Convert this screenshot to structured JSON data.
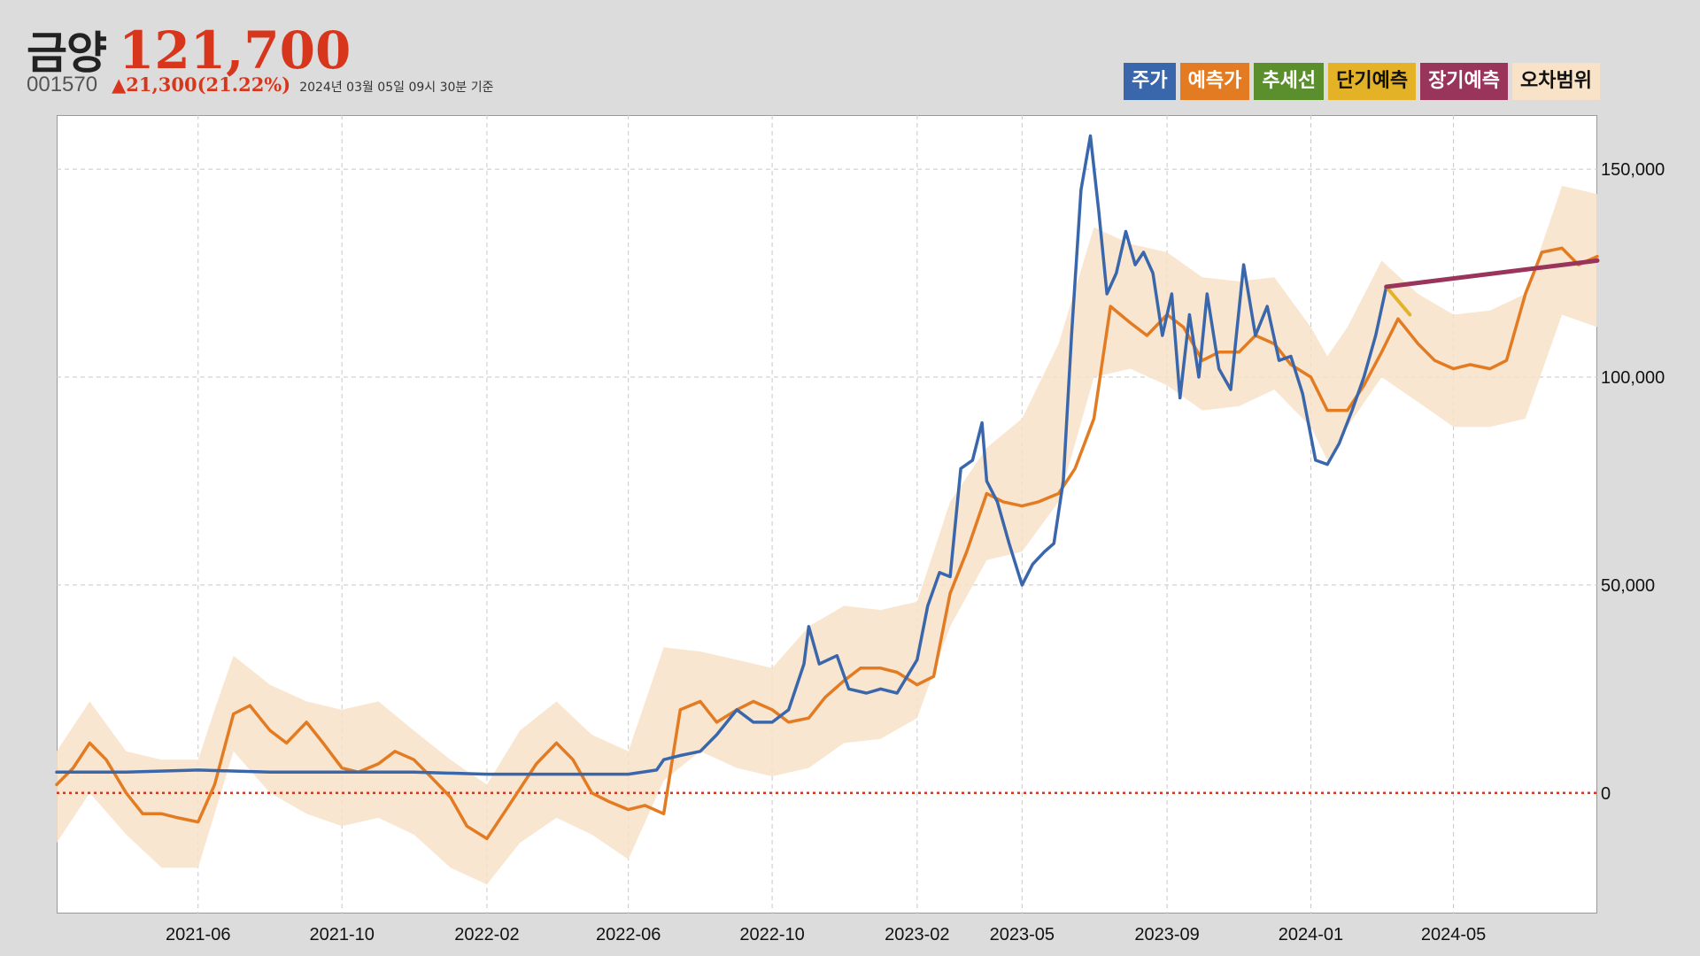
{
  "header": {
    "name": "금양",
    "price": "121,700",
    "code": "001570",
    "change": "▲21,300(21.22%)",
    "date": "2024년 03월 05일 09시 30분 기준"
  },
  "legend": [
    {
      "label": "주가",
      "color": "#3a67ab",
      "text_color": "#ffffff"
    },
    {
      "label": "예측가",
      "color": "#e37b22",
      "text_color": "#ffffff"
    },
    {
      "label": "추세선",
      "color": "#5b8f2d",
      "text_color": "#ffffff"
    },
    {
      "label": "단기예측",
      "color": "#e3b226",
      "text_color": "#111111"
    },
    {
      "label": "장기예측",
      "color": "#99345a",
      "text_color": "#ffffff"
    },
    {
      "label": "오차범위",
      "color": "#f8e2c8",
      "text_color": "#111111"
    }
  ],
  "chart_data": {
    "type": "line",
    "x_type": "date",
    "xlim": [
      "2021-02-01",
      "2024-08-31"
    ],
    "ylim": [
      -29000,
      163000
    ],
    "x_ticks": [
      "2021-06",
      "2021-10",
      "2022-02",
      "2022-06",
      "2022-10",
      "2023-02",
      "2023-05",
      "2023-09",
      "2024-01",
      "2024-05"
    ],
    "y_ticks": [
      0,
      50000,
      100000,
      150000
    ],
    "y_tick_labels": [
      "0",
      "50,000",
      "100,000",
      "150,000"
    ],
    "grid": true,
    "zero_line": {
      "value": 0,
      "color": "#d8361c",
      "style": "dotted"
    },
    "series": [
      {
        "name": "오차범위",
        "type": "band",
        "color": "#f8e2c8",
        "x": [
          "2021-02-01",
          "2021-03-01",
          "2021-04-01",
          "2021-05-01",
          "2021-06-01",
          "2021-06-15",
          "2021-07-01",
          "2021-08-01",
          "2021-09-01",
          "2021-10-01",
          "2021-11-01",
          "2021-12-01",
          "2022-01-01",
          "2022-02-01",
          "2022-03-01",
          "2022-04-01",
          "2022-05-01",
          "2022-06-01",
          "2022-07-01",
          "2022-08-01",
          "2022-09-01",
          "2022-10-01",
          "2022-11-01",
          "2022-12-01",
          "2023-01-01",
          "2023-02-01",
          "2023-03-01",
          "2023-04-01",
          "2023-05-01",
          "2023-06-01",
          "2023-07-01",
          "2023-08-01",
          "2023-09-01",
          "2023-10-01",
          "2023-11-01",
          "2023-12-01",
          "2024-01-01",
          "2024-01-15",
          "2024-02-01",
          "2024-03-01",
          "2024-04-01",
          "2024-05-01",
          "2024-06-01",
          "2024-07-01",
          "2024-08-01",
          "2024-08-31"
        ],
        "lower": [
          -12000,
          0,
          -10000,
          -18000,
          -18000,
          -5000,
          10000,
          0,
          -5000,
          -8000,
          -6000,
          -10000,
          -18000,
          -22000,
          -12000,
          -6000,
          -10000,
          -16000,
          3000,
          10000,
          6000,
          4000,
          6000,
          12000,
          13000,
          18000,
          40000,
          56000,
          58000,
          70000,
          100000,
          102000,
          98000,
          92000,
          93000,
          97000,
          88000,
          80000,
          88000,
          100000,
          94000,
          88000,
          88000,
          90000,
          115000,
          112000
        ],
        "upper": [
          10000,
          22000,
          10000,
          8000,
          8000,
          20000,
          33000,
          26000,
          22000,
          20000,
          22000,
          15000,
          8000,
          2000,
          15000,
          22000,
          14000,
          10000,
          35000,
          34000,
          32000,
          30000,
          40000,
          45000,
          44000,
          46000,
          70000,
          83000,
          90000,
          108000,
          136000,
          132000,
          130000,
          124000,
          123000,
          124000,
          112000,
          105000,
          112000,
          128000,
          120000,
          115000,
          116000,
          120000,
          146000,
          144000
        ]
      },
      {
        "name": "예측가",
        "color": "#e37b22",
        "x": [
          "2021-02-01",
          "2021-02-15",
          "2021-03-01",
          "2021-03-15",
          "2021-04-01",
          "2021-04-15",
          "2021-05-01",
          "2021-05-15",
          "2021-06-01",
          "2021-06-15",
          "2021-07-01",
          "2021-07-15",
          "2021-08-01",
          "2021-08-15",
          "2021-09-01",
          "2021-09-15",
          "2021-10-01",
          "2021-10-15",
          "2021-11-01",
          "2021-11-15",
          "2021-12-01",
          "2021-12-15",
          "2022-01-01",
          "2022-01-15",
          "2022-02-01",
          "2022-02-15",
          "2022-03-01",
          "2022-03-15",
          "2022-04-01",
          "2022-04-15",
          "2022-05-01",
          "2022-05-15",
          "2022-06-01",
          "2022-06-15",
          "2022-07-01",
          "2022-07-15",
          "2022-08-01",
          "2022-08-15",
          "2022-09-01",
          "2022-09-15",
          "2022-10-01",
          "2022-10-15",
          "2022-11-01",
          "2022-11-15",
          "2022-12-01",
          "2022-12-15",
          "2023-01-01",
          "2023-01-15",
          "2023-02-01",
          "2023-02-15",
          "2023-03-01",
          "2023-03-15",
          "2023-04-01",
          "2023-04-15",
          "2023-05-01",
          "2023-05-15",
          "2023-06-01",
          "2023-06-15",
          "2023-07-01",
          "2023-07-15",
          "2023-08-01",
          "2023-08-15",
          "2023-09-01",
          "2023-09-15",
          "2023-10-01",
          "2023-10-15",
          "2023-11-01",
          "2023-11-15",
          "2023-12-01",
          "2023-12-15",
          "2024-01-01",
          "2024-01-15",
          "2024-02-01",
          "2024-02-15",
          "2024-03-01",
          "2024-03-15",
          "2024-04-01",
          "2024-04-15",
          "2024-05-01",
          "2024-05-15",
          "2024-06-01",
          "2024-06-15",
          "2024-07-01",
          "2024-07-15",
          "2024-08-01",
          "2024-08-15",
          "2024-08-31"
        ],
        "values": [
          2000,
          6000,
          12000,
          8000,
          0,
          -5000,
          -5000,
          -6000,
          -7000,
          2000,
          19000,
          21000,
          15000,
          12000,
          17000,
          12000,
          6000,
          5000,
          7000,
          10000,
          8000,
          4000,
          -1000,
          -8000,
          -11000,
          -5000,
          1000,
          7000,
          12000,
          8000,
          0,
          -2000,
          -4000,
          -3000,
          -5000,
          20000,
          22000,
          17000,
          20000,
          22000,
          20000,
          17000,
          18000,
          23000,
          27000,
          30000,
          30000,
          29000,
          26000,
          28000,
          48000,
          58000,
          72000,
          70000,
          69000,
          70000,
          72000,
          78000,
          90000,
          117000,
          113000,
          110000,
          115000,
          112000,
          104000,
          106000,
          106000,
          110000,
          108000,
          103000,
          100000,
          92000,
          92000,
          98000,
          106000,
          114000,
          108000,
          104000,
          102000,
          103000,
          102000,
          104000,
          120000,
          130000,
          131000,
          127000,
          129000
        ]
      },
      {
        "name": "주가",
        "color": "#3a67ab",
        "x": [
          "2021-02-01",
          "2021-04-01",
          "2021-06-01",
          "2021-08-01",
          "2021-10-01",
          "2021-12-01",
          "2022-02-01",
          "2022-04-01",
          "2022-06-01",
          "2022-06-25",
          "2022-07-01",
          "2022-07-15",
          "2022-08-01",
          "2022-08-15",
          "2022-09-01",
          "2022-09-15",
          "2022-10-01",
          "2022-10-15",
          "2022-10-28",
          "2022-11-01",
          "2022-11-10",
          "2022-11-25",
          "2022-12-05",
          "2022-12-20",
          "2023-01-01",
          "2023-01-15",
          "2023-02-01",
          "2023-02-10",
          "2023-02-20",
          "2023-03-01",
          "2023-03-10",
          "2023-03-20",
          "2023-03-28",
          "2023-04-01",
          "2023-04-10",
          "2023-04-20",
          "2023-05-01",
          "2023-05-10",
          "2023-05-20",
          "2023-05-28",
          "2023-06-05",
          "2023-06-12",
          "2023-06-20",
          "2023-06-28",
          "2023-07-05",
          "2023-07-12",
          "2023-07-20",
          "2023-07-28",
          "2023-08-05",
          "2023-08-12",
          "2023-08-20",
          "2023-08-28",
          "2023-09-05",
          "2023-09-12",
          "2023-09-20",
          "2023-09-28",
          "2023-10-05",
          "2023-10-15",
          "2023-10-25",
          "2023-11-05",
          "2023-11-15",
          "2023-11-25",
          "2023-12-05",
          "2023-12-15",
          "2023-12-25",
          "2024-01-05",
          "2024-01-15",
          "2024-01-25",
          "2024-02-05",
          "2024-02-15",
          "2024-02-25",
          "2024-03-05"
        ],
        "values": [
          5000,
          5000,
          5500,
          5000,
          5000,
          5000,
          4500,
          4500,
          4500,
          5500,
          8000,
          9000,
          10000,
          14000,
          20000,
          17000,
          17000,
          20000,
          31000,
          40000,
          31000,
          33000,
          25000,
          24000,
          25000,
          24000,
          32000,
          45000,
          53000,
          52000,
          78000,
          80000,
          89000,
          75000,
          70000,
          60000,
          50000,
          55000,
          58000,
          60000,
          75000,
          110000,
          145000,
          158000,
          140000,
          120000,
          125000,
          135000,
          127000,
          130000,
          125000,
          110000,
          120000,
          95000,
          115000,
          100000,
          120000,
          102000,
          97000,
          127000,
          110000,
          117000,
          104000,
          105000,
          96000,
          80000,
          79000,
          84000,
          92000,
          100000,
          110000,
          121700
        ]
      },
      {
        "name": "단기예측",
        "color": "#e3b226",
        "x": [
          "2024-03-05",
          "2024-03-25"
        ],
        "values": [
          121700,
          115000
        ]
      },
      {
        "name": "장기예측",
        "color": "#99345a",
        "x": [
          "2024-03-05",
          "2024-08-31"
        ],
        "values": [
          121700,
          128000
        ]
      }
    ]
  }
}
